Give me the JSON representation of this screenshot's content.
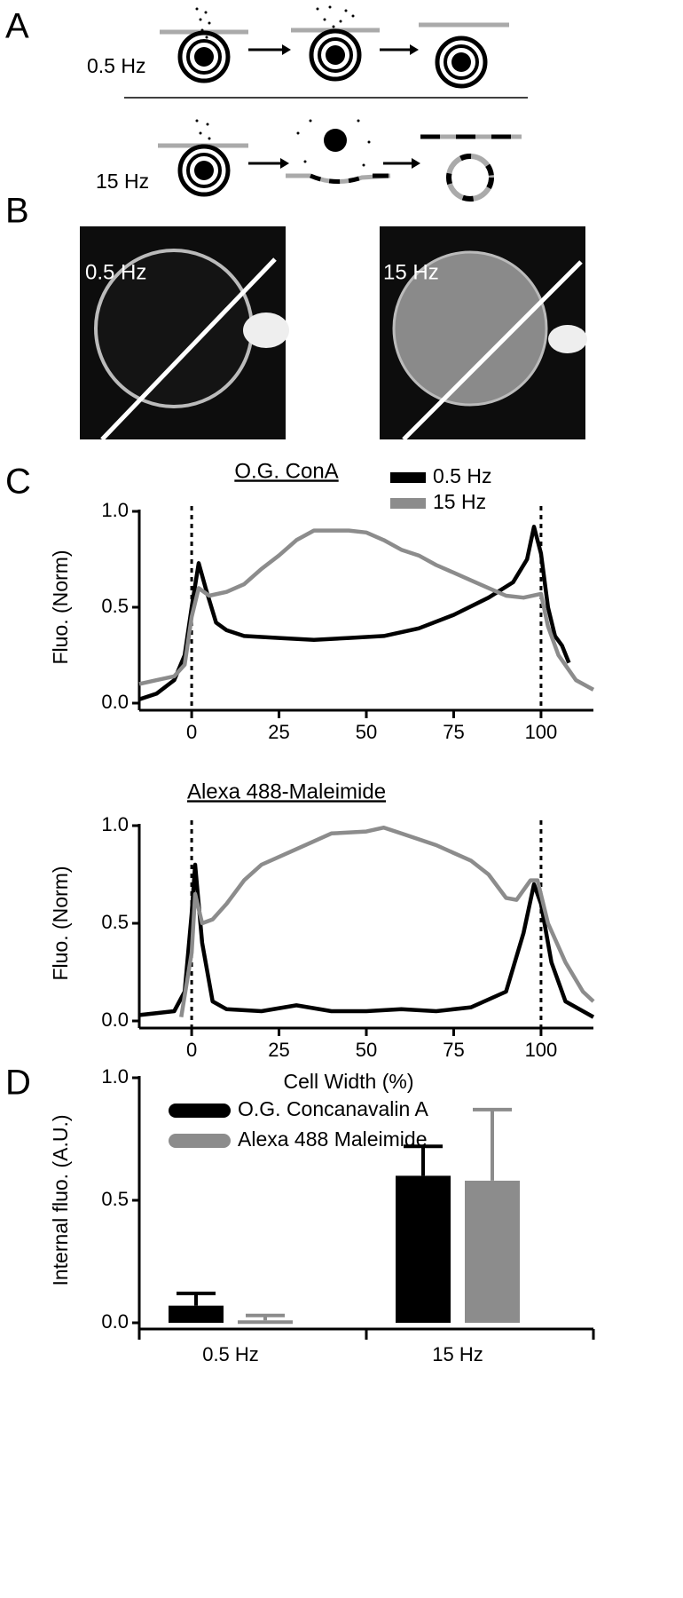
{
  "panel_labels": [
    "A",
    "B",
    "C",
    "D"
  ],
  "panel_a": {
    "rows": [
      {
        "label": "0.5 Hz"
      },
      {
        "label": "15 Hz"
      }
    ]
  },
  "panel_b": {
    "images": [
      {
        "label": "0.5 Hz"
      },
      {
        "label": "15 Hz"
      }
    ]
  },
  "chart_data": [
    {
      "type": "line",
      "title": "O.G. ConA",
      "ylabel": "Fluo. (Norm)",
      "xlim": [
        -15,
        115
      ],
      "ylim": [
        0,
        1
      ],
      "xticks": [
        0,
        25,
        50,
        75,
        100
      ],
      "yticks": [
        {
          "value": 0,
          "label": "0.0"
        },
        0.5,
        {
          "value": 1,
          "label": "1.0"
        }
      ],
      "vlines": [
        0,
        100
      ],
      "legend": "top-right",
      "series": [
        {
          "name": "0.5 Hz",
          "color": "#000000",
          "x": [
            -15,
            -10,
            -5,
            -2,
            0,
            2,
            4,
            7,
            10,
            15,
            25,
            35,
            45,
            55,
            65,
            75,
            85,
            92,
            96,
            98,
            100,
            102,
            104,
            106,
            108
          ],
          "values": [
            0.02,
            0.05,
            0.12,
            0.25,
            0.5,
            0.73,
            0.6,
            0.42,
            0.38,
            0.35,
            0.34,
            0.33,
            0.34,
            0.35,
            0.39,
            0.46,
            0.55,
            0.63,
            0.75,
            0.92,
            0.78,
            0.5,
            0.35,
            0.3,
            0.21
          ]
        },
        {
          "name": "15 Hz",
          "color": "#8c8c8c",
          "x": [
            -15,
            -10,
            -5,
            -2,
            0,
            2,
            5,
            10,
            15,
            20,
            25,
            30,
            35,
            40,
            45,
            50,
            55,
            60,
            65,
            70,
            75,
            80,
            85,
            90,
            95,
            100,
            102,
            105,
            110,
            115
          ],
          "values": [
            0.1,
            0.12,
            0.14,
            0.2,
            0.45,
            0.6,
            0.56,
            0.58,
            0.62,
            0.7,
            0.77,
            0.85,
            0.9,
            0.9,
            0.9,
            0.89,
            0.85,
            0.8,
            0.77,
            0.72,
            0.68,
            0.64,
            0.6,
            0.56,
            0.55,
            0.57,
            0.4,
            0.25,
            0.12,
            0.07
          ]
        }
      ]
    },
    {
      "type": "line",
      "title": "Alexa 488-Maleimide",
      "ylabel": "Fluo. (Norm)",
      "xlabel": "Cell Width (%)",
      "xlim": [
        -15,
        115
      ],
      "ylim": [
        0,
        1
      ],
      "xticks": [
        0,
        25,
        50,
        75,
        100
      ],
      "yticks": [
        {
          "value": 0,
          "label": "0.0"
        },
        0.5,
        {
          "value": 1,
          "label": "1.0"
        }
      ],
      "vlines": [
        0,
        100
      ],
      "series": [
        {
          "color": "#000000",
          "x": [
            -15,
            -5,
            -2,
            0,
            1,
            3,
            6,
            10,
            20,
            30,
            40,
            50,
            60,
            70,
            80,
            90,
            95,
            98,
            100,
            103,
            107,
            115
          ],
          "values": [
            0.03,
            0.05,
            0.15,
            0.55,
            0.8,
            0.4,
            0.1,
            0.06,
            0.05,
            0.08,
            0.05,
            0.05,
            0.06,
            0.05,
            0.07,
            0.15,
            0.45,
            0.7,
            0.6,
            0.3,
            0.1,
            0.02
          ]
        },
        {
          "color": "#8c8c8c",
          "x": [
            -3,
            0,
            1,
            3,
            6,
            10,
            15,
            20,
            30,
            40,
            50,
            55,
            60,
            70,
            80,
            85,
            90,
            93,
            97,
            99,
            102,
            107,
            112,
            115
          ],
          "values": [
            0.02,
            0.35,
            0.65,
            0.5,
            0.52,
            0.6,
            0.72,
            0.8,
            0.88,
            0.96,
            0.97,
            0.99,
            0.96,
            0.9,
            0.82,
            0.75,
            0.63,
            0.62,
            0.72,
            0.72,
            0.5,
            0.3,
            0.15,
            0.1
          ]
        }
      ]
    },
    {
      "type": "bar",
      "ylabel": "Internal fluo. (A.U.)",
      "categories": [
        "0.5 Hz",
        "15 Hz"
      ],
      "ylim": [
        0,
        1
      ],
      "yticks": [
        {
          "value": 0,
          "label": "0.0"
        },
        0.5,
        {
          "value": 1,
          "label": "1.0"
        }
      ],
      "legend": "top-left",
      "series": [
        {
          "name": "O.G. Concanavalin A",
          "color": "#000000",
          "values": [
            0.07,
            0.6
          ],
          "errors": [
            0.05,
            0.12
          ]
        },
        {
          "name": "Alexa 488 Maleimide",
          "color": "#8c8c8c",
          "values": [
            0.01,
            0.58
          ],
          "errors": [
            0.02,
            0.29
          ]
        }
      ]
    }
  ]
}
